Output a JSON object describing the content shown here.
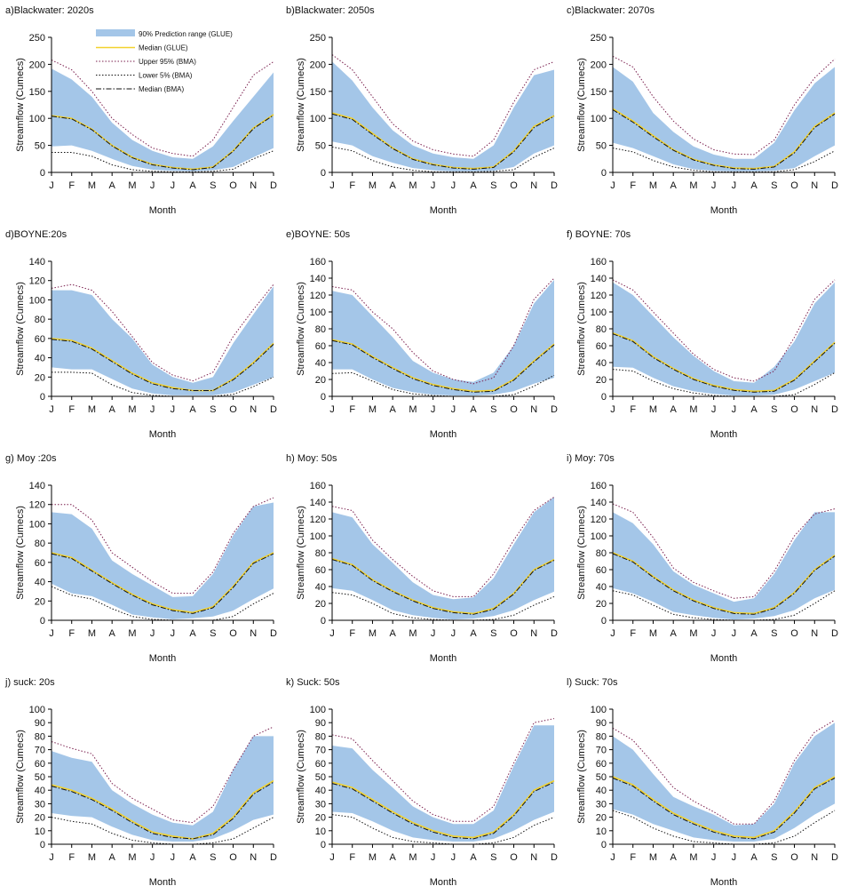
{
  "figure": {
    "month_labels": [
      "J",
      "F",
      "M",
      "A",
      "M",
      "J",
      "J",
      "A",
      "S",
      "O",
      "N",
      "D"
    ],
    "xlabel": "Month",
    "ylabel": "Streamflow (Cumecs)",
    "legend": {
      "band": "90% Prediction range (GLUE)",
      "median_glue": "Median (GLUE)",
      "upper_bma": "Upper 95% (BMA)",
      "lower_bma": "Lower 5% (BMA)",
      "median_bma": "Median (BMA)"
    },
    "colors": {
      "band": "#a4c6e8",
      "median_glue": "#f2d22e",
      "upper_bma": "#7a1f4e",
      "lower_bma": "#111111",
      "median_bma": "#111111"
    }
  },
  "chart_data": [
    {
      "type": "area",
      "title": "a)Blackwater: 2020s",
      "ylim": [
        0,
        250
      ],
      "yticks": [
        0,
        50,
        100,
        150,
        200,
        250
      ],
      "glue_upper": [
        192,
        172,
        140,
        92,
        60,
        40,
        28,
        25,
        48,
        95,
        140,
        185
      ],
      "glue_lower": [
        48,
        50,
        40,
        25,
        12,
        5,
        3,
        2,
        4,
        10,
        28,
        45
      ],
      "median_glue": [
        105,
        100,
        80,
        50,
        28,
        15,
        9,
        6,
        10,
        40,
        82,
        107
      ],
      "median_bma": [
        104,
        99,
        79,
        49,
        27,
        14,
        8,
        5,
        9,
        39,
        81,
        106
      ],
      "upper_bma": [
        208,
        190,
        150,
        100,
        70,
        45,
        35,
        30,
        60,
        120,
        180,
        205
      ],
      "lower_bma": [
        37,
        37,
        30,
        14,
        5,
        2,
        1,
        1,
        2,
        6,
        25,
        40
      ]
    },
    {
      "type": "area",
      "title": "b)Blackwater: 2050s",
      "ylim": [
        0,
        250
      ],
      "yticks": [
        0,
        50,
        100,
        150,
        200,
        250
      ],
      "glue_upper": [
        205,
        170,
        120,
        78,
        50,
        35,
        28,
        25,
        50,
        120,
        180,
        190
      ],
      "glue_lower": [
        57,
        50,
        30,
        18,
        8,
        4,
        2,
        2,
        3,
        10,
        35,
        50
      ],
      "median_glue": [
        110,
        100,
        72,
        45,
        25,
        15,
        9,
        7,
        10,
        40,
        85,
        105
      ],
      "median_bma": [
        108,
        98,
        70,
        44,
        24,
        14,
        8,
        6,
        9,
        38,
        83,
        104
      ],
      "upper_bma": [
        218,
        190,
        140,
        90,
        58,
        42,
        34,
        30,
        60,
        130,
        190,
        205
      ],
      "lower_bma": [
        47,
        40,
        22,
        10,
        4,
        1,
        1,
        1,
        2,
        5,
        28,
        45
      ]
    },
    {
      "type": "area",
      "title": "c)Blackwater: 2070s",
      "ylim": [
        0,
        250
      ],
      "yticks": [
        0,
        50,
        100,
        150,
        200,
        250
      ],
      "glue_upper": [
        195,
        168,
        110,
        75,
        48,
        33,
        25,
        25,
        55,
        115,
        165,
        195
      ],
      "glue_lower": [
        55,
        45,
        30,
        15,
        6,
        3,
        2,
        2,
        3,
        8,
        30,
        50
      ],
      "median_glue": [
        118,
        95,
        68,
        42,
        24,
        14,
        8,
        7,
        11,
        38,
        85,
        110
      ],
      "median_bma": [
        116,
        93,
        66,
        41,
        23,
        13,
        7,
        6,
        10,
        36,
        83,
        108
      ],
      "upper_bma": [
        215,
        195,
        140,
        95,
        62,
        42,
        34,
        33,
        60,
        125,
        175,
        210
      ],
      "lower_bma": [
        45,
        38,
        22,
        10,
        4,
        1,
        1,
        1,
        1,
        5,
        20,
        40
      ]
    },
    {
      "type": "area",
      "title": "d)BOYNE:20s",
      "ylim": [
        0,
        140
      ],
      "yticks": [
        0,
        20,
        40,
        60,
        80,
        100,
        120,
        140
      ],
      "glue_upper": [
        110,
        110,
        105,
        80,
        60,
        33,
        20,
        14,
        20,
        55,
        85,
        114
      ],
      "glue_lower": [
        30,
        28,
        28,
        18,
        8,
        3,
        1,
        1,
        1,
        4,
        12,
        20
      ],
      "median_glue": [
        60,
        58,
        50,
        37,
        24,
        14,
        9,
        6,
        6,
        18,
        35,
        55
      ],
      "median_bma": [
        59,
        57,
        49,
        36,
        23,
        13,
        8,
        6,
        6,
        17,
        34,
        54
      ],
      "upper_bma": [
        112,
        116,
        110,
        88,
        62,
        35,
        22,
        16,
        25,
        62,
        90,
        116
      ],
      "lower_bma": [
        25,
        25,
        24,
        12,
        4,
        1,
        0,
        0,
        0,
        2,
        10,
        20
      ]
    },
    {
      "type": "area",
      "title": "e)BOYNE: 50s",
      "ylim": [
        0,
        160
      ],
      "yticks": [
        0,
        20,
        40,
        60,
        80,
        100,
        120,
        140,
        160
      ],
      "glue_upper": [
        125,
        120,
        95,
        70,
        42,
        28,
        20,
        17,
        28,
        60,
        110,
        138
      ],
      "glue_lower": [
        32,
        32,
        20,
        10,
        5,
        2,
        1,
        1,
        2,
        6,
        15,
        22
      ],
      "median_glue": [
        67,
        62,
        47,
        34,
        22,
        14,
        9,
        6,
        7,
        20,
        42,
        62
      ],
      "median_bma": [
        66,
        61,
        46,
        33,
        21,
        13,
        8,
        5,
        6,
        19,
        41,
        61
      ],
      "upper_bma": [
        130,
        126,
        100,
        80,
        52,
        30,
        20,
        15,
        22,
        60,
        115,
        140
      ],
      "lower_bma": [
        27,
        28,
        18,
        8,
        3,
        1,
        0,
        0,
        0,
        2,
        12,
        25
      ]
    },
    {
      "type": "area",
      "title": "f) BOYNE: 70s",
      "ylim": [
        0,
        160
      ],
      "yticks": [
        0,
        20,
        40,
        60,
        80,
        100,
        120,
        140,
        160
      ],
      "glue_upper": [
        135,
        120,
        95,
        70,
        48,
        30,
        18,
        16,
        35,
        65,
        110,
        135
      ],
      "glue_lower": [
        35,
        34,
        22,
        12,
        6,
        3,
        1,
        1,
        2,
        8,
        18,
        28
      ],
      "median_glue": [
        75,
        66,
        47,
        33,
        21,
        13,
        8,
        6,
        7,
        20,
        42,
        64
      ],
      "median_bma": [
        74,
        65,
        46,
        32,
        20,
        12,
        7,
        5,
        6,
        19,
        41,
        63
      ],
      "upper_bma": [
        138,
        126,
        100,
        75,
        50,
        32,
        22,
        18,
        30,
        70,
        115,
        138
      ],
      "lower_bma": [
        32,
        30,
        18,
        9,
        4,
        1,
        0,
        0,
        0,
        2,
        14,
        28
      ]
    },
    {
      "type": "area",
      "title": "g) Moy :20s",
      "ylim": [
        0,
        140
      ],
      "yticks": [
        0,
        20,
        40,
        60,
        80,
        100,
        120,
        140
      ],
      "glue_upper": [
        112,
        110,
        95,
        62,
        48,
        36,
        24,
        25,
        48,
        88,
        118,
        122
      ],
      "glue_lower": [
        38,
        28,
        25,
        16,
        6,
        3,
        1,
        2,
        4,
        10,
        22,
        33
      ],
      "median_glue": [
        70,
        65,
        52,
        39,
        27,
        17,
        11,
        8,
        14,
        35,
        60,
        70
      ],
      "median_bma": [
        69,
        64,
        51,
        38,
        26,
        16,
        10,
        7,
        13,
        34,
        59,
        69
      ],
      "upper_bma": [
        120,
        120,
        104,
        70,
        55,
        40,
        28,
        28,
        50,
        90,
        118,
        127
      ],
      "lower_bma": [
        35,
        26,
        22,
        12,
        4,
        1,
        0,
        0,
        0,
        4,
        17,
        28
      ]
    },
    {
      "type": "area",
      "title": "h) Moy: 50s",
      "ylim": [
        0,
        160
      ],
      "yticks": [
        0,
        20,
        40,
        60,
        80,
        100,
        120,
        140,
        160
      ],
      "glue_upper": [
        128,
        122,
        90,
        68,
        45,
        30,
        25,
        27,
        50,
        90,
        128,
        146
      ],
      "glue_lower": [
        38,
        35,
        24,
        12,
        6,
        3,
        1,
        2,
        5,
        12,
        24,
        34
      ],
      "median_glue": [
        73,
        66,
        48,
        35,
        24,
        15,
        10,
        8,
        14,
        32,
        60,
        72
      ],
      "median_bma": [
        72,
        65,
        47,
        34,
        23,
        14,
        9,
        7,
        13,
        31,
        59,
        71
      ],
      "upper_bma": [
        135,
        130,
        95,
        72,
        52,
        35,
        28,
        28,
        55,
        95,
        130,
        146
      ],
      "lower_bma": [
        33,
        30,
        20,
        8,
        3,
        1,
        0,
        0,
        1,
        6,
        18,
        28
      ]
    },
    {
      "type": "area",
      "title": "i) Moy: 70s",
      "ylim": [
        0,
        160
      ],
      "yticks": [
        0,
        20,
        40,
        60,
        80,
        100,
        120,
        140,
        160
      ],
      "glue_upper": [
        128,
        115,
        90,
        58,
        42,
        32,
        22,
        26,
        55,
        95,
        128,
        128
      ],
      "glue_lower": [
        38,
        32,
        22,
        10,
        6,
        3,
        1,
        2,
        5,
        12,
        26,
        36
      ],
      "median_glue": [
        80,
        70,
        52,
        36,
        24,
        15,
        9,
        8,
        15,
        33,
        60,
        77
      ],
      "median_bma": [
        79,
        69,
        51,
        35,
        23,
        14,
        8,
        7,
        14,
        32,
        59,
        76
      ],
      "upper_bma": [
        138,
        128,
        98,
        62,
        45,
        35,
        26,
        28,
        58,
        100,
        126,
        132
      ],
      "lower_bma": [
        35,
        30,
        18,
        7,
        3,
        1,
        0,
        0,
        1,
        6,
        20,
        35
      ]
    },
    {
      "type": "area",
      "title": "j) suck: 20s",
      "ylim": [
        0,
        100
      ],
      "yticks": [
        0,
        10,
        20,
        30,
        40,
        50,
        60,
        70,
        80,
        90,
        100
      ],
      "glue_upper": [
        69,
        64,
        61,
        40,
        30,
        22,
        16,
        14,
        24,
        55,
        80,
        80
      ],
      "glue_lower": [
        23,
        21,
        20,
        13,
        7,
        3,
        2,
        2,
        4,
        10,
        18,
        22
      ],
      "median_glue": [
        44,
        40,
        34,
        26,
        17,
        9,
        6,
        4,
        8,
        20,
        38,
        47
      ],
      "median_bma": [
        43,
        39,
        33,
        25,
        16,
        8,
        5,
        4,
        7,
        19,
        37,
        46
      ],
      "upper_bma": [
        76,
        71,
        67,
        45,
        34,
        26,
        18,
        16,
        28,
        55,
        80,
        87
      ],
      "lower_bma": [
        20,
        17,
        15,
        8,
        3,
        1,
        0,
        0,
        1,
        4,
        12,
        20
      ]
    },
    {
      "type": "area",
      "title": "k) Suck: 50s",
      "ylim": [
        0,
        100
      ],
      "yticks": [
        0,
        10,
        20,
        30,
        40,
        50,
        60,
        70,
        80,
        90,
        100
      ],
      "glue_upper": [
        73,
        71,
        55,
        42,
        28,
        20,
        15,
        15,
        25,
        58,
        88,
        88
      ],
      "glue_lower": [
        24,
        23,
        17,
        10,
        5,
        3,
        2,
        2,
        4,
        10,
        18,
        24
      ],
      "median_glue": [
        46,
        42,
        33,
        24,
        16,
        10,
        6,
        5,
        9,
        22,
        40,
        47
      ],
      "median_bma": [
        45,
        41,
        32,
        23,
        15,
        9,
        5,
        4,
        8,
        21,
        39,
        46
      ],
      "upper_bma": [
        81,
        78,
        62,
        47,
        32,
        22,
        17,
        17,
        28,
        60,
        90,
        93
      ],
      "lower_bma": [
        22,
        20,
        12,
        5,
        2,
        1,
        0,
        0,
        1,
        5,
        14,
        20
      ]
    },
    {
      "type": "area",
      "title": "l) Suck: 70s",
      "ylim": [
        0,
        100
      ],
      "yticks": [
        0,
        10,
        20,
        30,
        40,
        50,
        60,
        70,
        80,
        90,
        100
      ],
      "glue_upper": [
        80,
        70,
        52,
        35,
        28,
        22,
        14,
        15,
        30,
        60,
        80,
        90
      ],
      "glue_lower": [
        26,
        22,
        15,
        10,
        5,
        3,
        2,
        2,
        4,
        12,
        22,
        30
      ],
      "median_glue": [
        50,
        44,
        33,
        23,
        16,
        10,
        6,
        5,
        10,
        24,
        42,
        50
      ],
      "median_bma": [
        49,
        43,
        32,
        22,
        15,
        9,
        5,
        4,
        9,
        23,
        41,
        49
      ],
      "upper_bma": [
        86,
        77,
        60,
        42,
        32,
        24,
        15,
        15,
        32,
        62,
        83,
        92
      ],
      "lower_bma": [
        25,
        20,
        12,
        6,
        2,
        1,
        0,
        0,
        1,
        6,
        16,
        25
      ]
    }
  ]
}
